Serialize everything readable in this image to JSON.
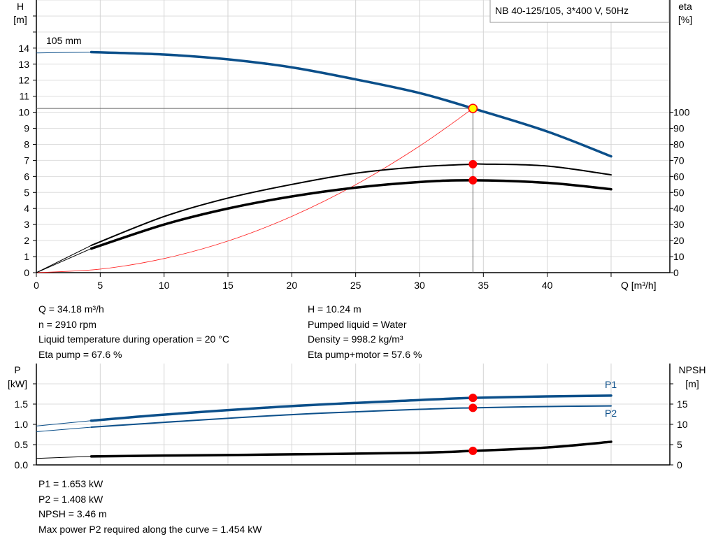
{
  "title_box": "NB 40-125/105, 3*400 V, 50Hz",
  "impeller_label": "105 mm",
  "colors": {
    "head": "#0b4f8a",
    "eta": "#000000",
    "system": "#ff2020",
    "point": "#ff0000",
    "duty_point": "#ffff00",
    "power": "#0b4f8a"
  },
  "chart_data": [
    {
      "type": "line",
      "xlabel": "Q [m³/h]",
      "ylabel_left": [
        "H",
        "[m]"
      ],
      "ylabel_right": [
        "eta",
        "[%]"
      ],
      "xlim": [
        0,
        49.6
      ],
      "ylim_left": [
        0,
        17
      ],
      "ylim_right": [
        0,
        170
      ],
      "x_ticks": [
        0,
        5,
        10,
        15,
        20,
        25,
        30,
        35,
        40
      ],
      "y_ticks_left": [
        0,
        1,
        2,
        3,
        4,
        5,
        6,
        7,
        8,
        9,
        10,
        11,
        12,
        13,
        14
      ],
      "y_ticks_right": [
        0,
        10,
        20,
        30,
        40,
        50,
        60,
        70,
        80,
        90,
        100
      ],
      "grid": true,
      "series": [
        {
          "axis": "left",
          "role": "head",
          "x": [
            0,
            4.3,
            10,
            15,
            20,
            25,
            30,
            34.18,
            40,
            45
          ],
          "y": [
            13.7,
            13.75,
            13.6,
            13.3,
            12.8,
            12.05,
            11.2,
            10.24,
            8.8,
            7.25
          ]
        },
        {
          "axis": "right",
          "role": "eta-pump",
          "x": [
            0,
            4.3,
            10,
            15,
            20,
            25,
            30,
            34.18,
            35,
            40,
            45
          ],
          "y": [
            0,
            17,
            35,
            46.5,
            55,
            62,
            66,
            67.6,
            67.7,
            66.5,
            61
          ]
        },
        {
          "axis": "right",
          "role": "eta-pump-motor",
          "x": [
            0,
            4.3,
            10,
            15,
            20,
            25,
            30,
            34.18,
            40,
            45
          ],
          "y": [
            0,
            15,
            30,
            40,
            47.5,
            53,
            56.5,
            57.6,
            56,
            52
          ]
        },
        {
          "axis": "left",
          "role": "system",
          "x": [
            0,
            5,
            10,
            15,
            20,
            25,
            30,
            34.18
          ],
          "y": [
            0,
            0.22,
            0.88,
            1.97,
            3.51,
            5.48,
            7.89,
            10.24
          ]
        }
      ],
      "duty_point": {
        "x": 34.18,
        "y": 10.24
      }
    },
    {
      "type": "line",
      "ylabel_left": [
        "P",
        "[kW]"
      ],
      "ylabel_right": [
        "NPSH",
        "[m]"
      ],
      "xlim": [
        0,
        49.6
      ],
      "ylim_left": [
        0,
        2.5
      ],
      "ylim_right": [
        0,
        25
      ],
      "y_ticks_left": [
        "0.0",
        "0.5",
        "1.0",
        "1.5"
      ],
      "y_ticks_right": [
        "0",
        "5",
        "10",
        "15"
      ],
      "grid": true,
      "series": [
        {
          "name": "P1",
          "axis": "left",
          "x": [
            0,
            4.3,
            10,
            20,
            30,
            34.18,
            40,
            45
          ],
          "y": [
            0.96,
            1.09,
            1.24,
            1.45,
            1.6,
            1.653,
            1.69,
            1.71
          ]
        },
        {
          "name": "P2",
          "axis": "left",
          "x": [
            0,
            4.3,
            10,
            20,
            30,
            34.18,
            40,
            45
          ],
          "y": [
            0.82,
            0.93,
            1.05,
            1.24,
            1.37,
            1.408,
            1.44,
            1.454
          ]
        },
        {
          "role": "NPSH",
          "axis": "right",
          "x": [
            0,
            4.3,
            10,
            20,
            30,
            34.18,
            40,
            45
          ],
          "y": [
            1.6,
            2.1,
            2.3,
            2.6,
            3.0,
            3.46,
            4.3,
            5.7
          ]
        }
      ],
      "duty_x": 34.18
    }
  ],
  "info_top": {
    "left": [
      "Q = 34.18 m³/h",
      "n = 2910 rpm",
      "Liquid temperature during operation = 20 °C",
      "Eta pump = 67.6 %"
    ],
    "right": [
      "H = 10.24 m",
      "Pumped liquid = Water",
      "Density = 998.2 kg/m³",
      "Eta pump+motor = 57.6 %"
    ]
  },
  "info_bottom": [
    "P1 = 1.653 kW",
    "P2 = 1.408 kW",
    "NPSH = 3.46 m",
    "Max power P2 required along the curve = 1.454 kW"
  ]
}
